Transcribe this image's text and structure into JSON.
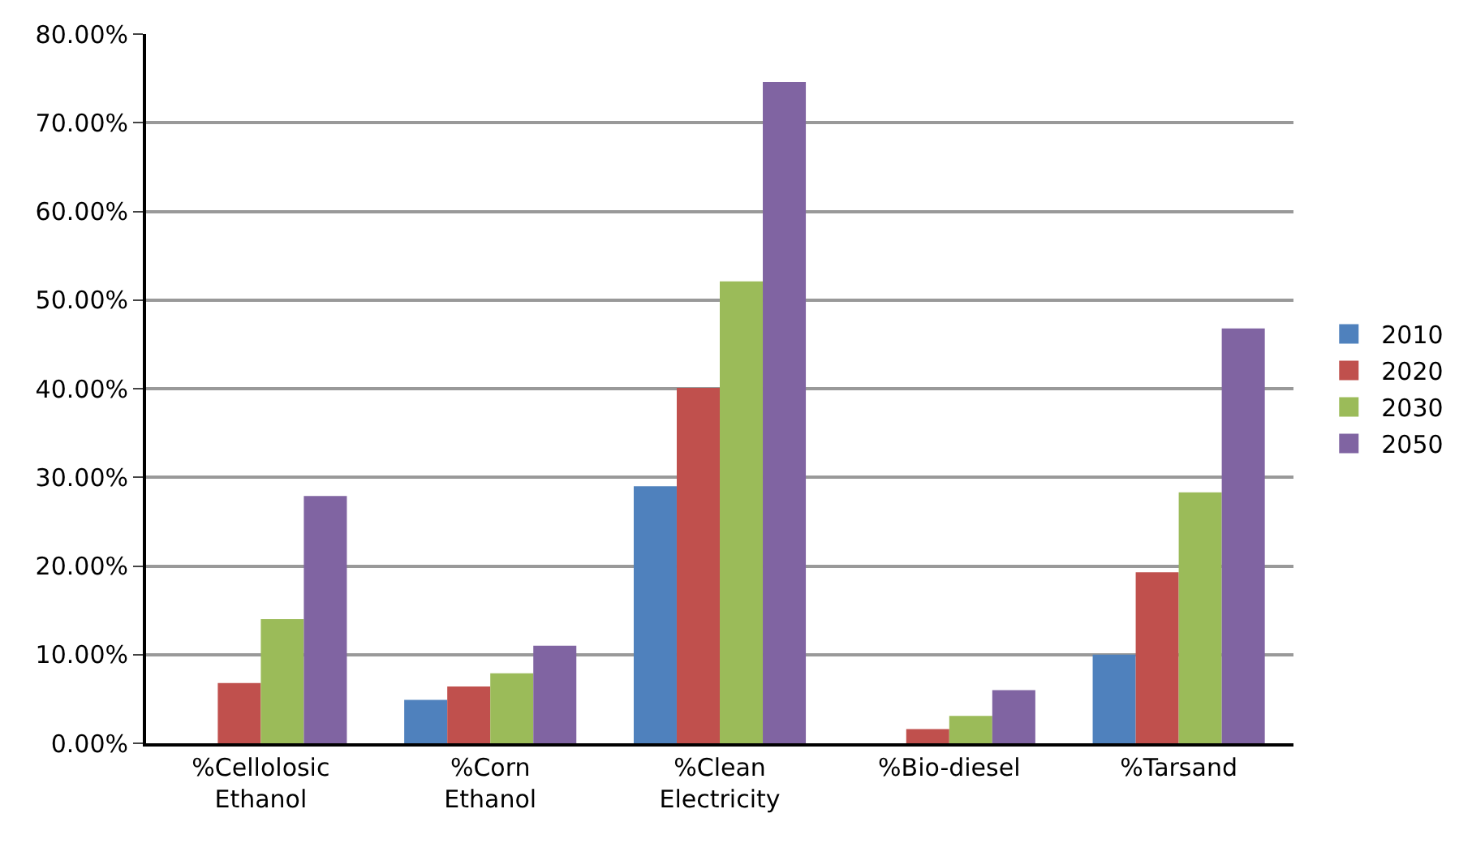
{
  "chart_data": {
    "type": "bar",
    "categories": [
      "%Cellolosic Ethanol",
      "%Corn Ethanol",
      "%Clean Electricity",
      "%Bio-diesel",
      "%Tarsand"
    ],
    "series": [
      {
        "name": "2010",
        "color": "#4f81bd",
        "values": [
          0,
          4.9,
          29.0,
          0,
          10.0
        ]
      },
      {
        "name": "2020",
        "color": "#c0504d",
        "values": [
          6.8,
          6.4,
          40.1,
          1.6,
          19.3
        ]
      },
      {
        "name": "2030",
        "color": "#9bbb59",
        "values": [
          14.0,
          7.9,
          52.1,
          3.1,
          28.3
        ]
      },
      {
        "name": "2050",
        "color": "#8064a2",
        "values": [
          27.9,
          11.0,
          74.6,
          6.0,
          46.8
        ]
      }
    ],
    "ylim": [
      0,
      80
    ],
    "yticks": [
      {
        "value": 0,
        "label": "0.00%"
      },
      {
        "value": 10,
        "label": "10.00%"
      },
      {
        "value": 20,
        "label": "20.00%"
      },
      {
        "value": 30,
        "label": "30.00%"
      },
      {
        "value": 40,
        "label": "40.00%"
      },
      {
        "value": 50,
        "label": "50.00%"
      },
      {
        "value": 60,
        "label": "60.00%"
      },
      {
        "value": 70,
        "label": "70.00%"
      },
      {
        "value": 80,
        "label": "80.00%"
      }
    ],
    "grid": "y",
    "legend": "right"
  }
}
